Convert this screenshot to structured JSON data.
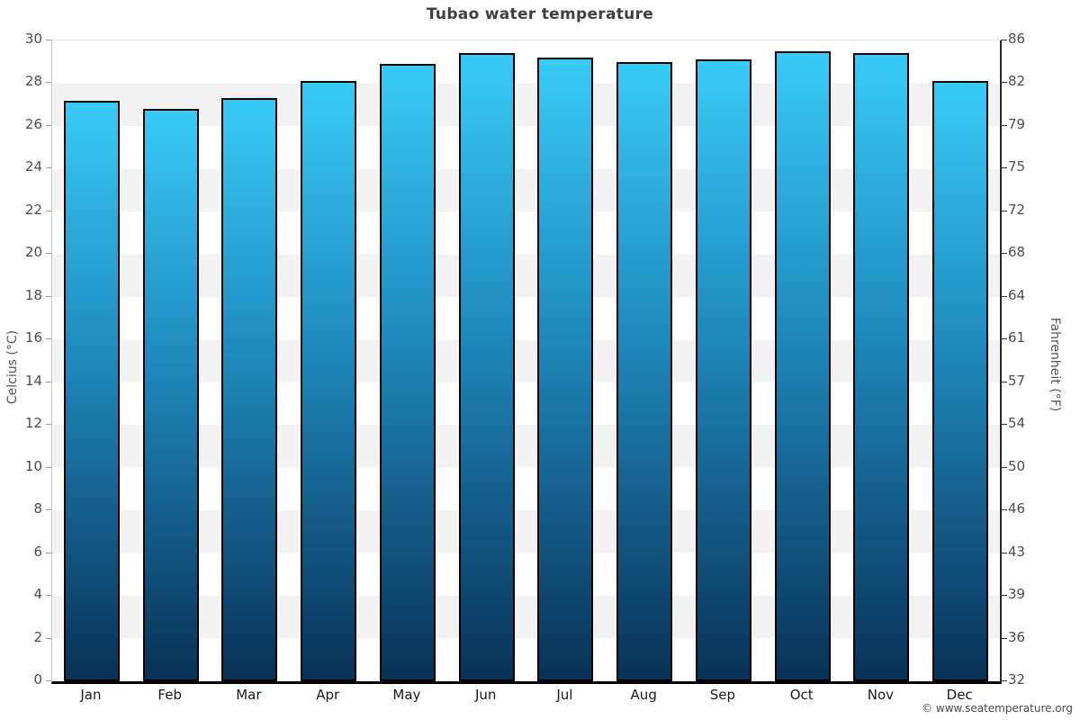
{
  "title": "Tubao water temperature",
  "chart_data": {
    "type": "bar",
    "title": "Tubao water temperature",
    "categories": [
      "Jan",
      "Feb",
      "Mar",
      "Apr",
      "May",
      "Jun",
      "Jul",
      "Aug",
      "Sep",
      "Oct",
      "Nov",
      "Dec"
    ],
    "values": [
      27.2,
      26.8,
      27.3,
      28.1,
      28.9,
      29.4,
      29.2,
      29.0,
      29.1,
      29.5,
      29.4,
      28.1
    ],
    "unit": "°C",
    "ylabel_left": "Celcius (°C)",
    "ylabel_right": "Fahrenheit (°F)",
    "xlabel": "",
    "ylim_celsius": [
      0,
      30
    ],
    "celsius_ticks": [
      30,
      28,
      26,
      24,
      22,
      20,
      18,
      16,
      14,
      12,
      10,
      8,
      6,
      4,
      2,
      0
    ],
    "fahrenheit_ticks": [
      86,
      82,
      79,
      75,
      72,
      68,
      64,
      61,
      57,
      54,
      50,
      46,
      43,
      39,
      36,
      32
    ],
    "grid": "alternating horizontal bands every 2°C",
    "legend": "none",
    "bar_color_top": "#38cbf7",
    "bar_color_mid": "#1e88bc",
    "bar_color_bottom": "#093156",
    "bar_border_color": "#000000",
    "band_color": "#f2f2f2"
  },
  "footer": {
    "copyright": "© www.seatemperature.org"
  }
}
